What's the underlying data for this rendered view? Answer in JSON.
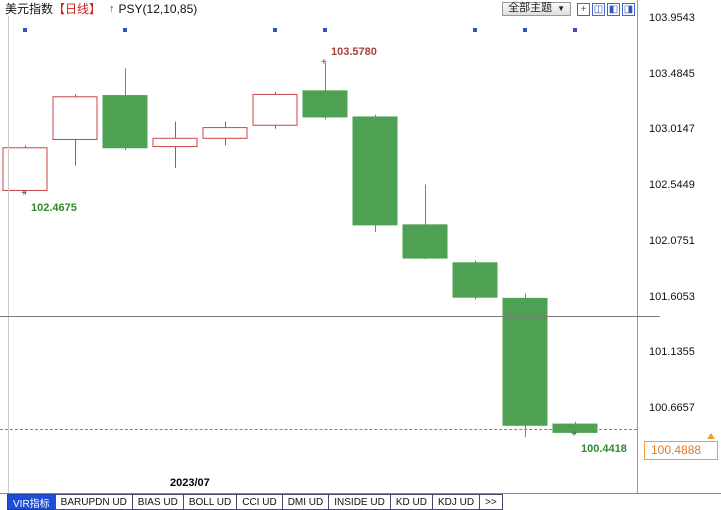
{
  "header": {
    "symbol": "美元指数",
    "period": "【日线】",
    "arrow_icon": "↑",
    "indicator": "PSY(12,10,85)",
    "theme_button_label": "全部主题",
    "theme_button_caret": "▼",
    "icons": [
      {
        "name": "add-panel-icon",
        "glyph": "+"
      },
      {
        "name": "layout-columns-icon",
        "glyph": "◫"
      },
      {
        "name": "layout-left-pane-icon",
        "glyph": "◧"
      },
      {
        "name": "layout-right-pane-icon",
        "glyph": "◨"
      }
    ]
  },
  "footer": {
    "date_label": "2023/07",
    "tabs": [
      {
        "id": "vir",
        "label": "VIR指标",
        "active": true
      },
      {
        "id": "barupdn",
        "label": "BARUPDN UD",
        "active": false
      },
      {
        "id": "bias",
        "label": "BIAS UD",
        "active": false
      },
      {
        "id": "boll",
        "label": "BOLL UD",
        "active": false
      },
      {
        "id": "cci",
        "label": "CCI UD",
        "active": false
      },
      {
        "id": "dmi",
        "label": "DMI UD",
        "active": false
      },
      {
        "id": "inside",
        "label": "INSIDE UD",
        "active": false
      },
      {
        "id": "kd",
        "label": "KD UD",
        "active": false
      },
      {
        "id": "kdj",
        "label": "KDJ UD",
        "active": false
      },
      {
        "id": "more",
        "label": ">>",
        "active": false
      }
    ]
  },
  "chart_data": {
    "type": "candlestick",
    "title": "美元指数 日线",
    "indicator": "PSY(12,10,85)",
    "y_ticks": [
      "103.9543",
      "103.4845",
      "103.0147",
      "102.5449",
      "102.0751",
      "101.6053",
      "101.1355",
      "100.6657"
    ],
    "ylim": [
      100.35,
      104.0
    ],
    "current_price": "100.4888",
    "reference_line": 101.44,
    "x_month_label": "2023/07",
    "candles": [
      {
        "o": 102.5,
        "h": 102.88,
        "l": 102.4675,
        "c": 102.86
      },
      {
        "o": 102.93,
        "h": 103.31,
        "l": 102.71,
        "c": 103.29
      },
      {
        "o": 103.3,
        "h": 103.53,
        "l": 102.84,
        "c": 102.86
      },
      {
        "o": 102.87,
        "h": 103.08,
        "l": 102.69,
        "c": 102.94
      },
      {
        "o": 102.94,
        "h": 103.08,
        "l": 102.88,
        "c": 103.03
      },
      {
        "o": 103.05,
        "h": 103.33,
        "l": 103.02,
        "c": 103.31
      },
      {
        "o": 103.34,
        "h": 103.578,
        "l": 103.1,
        "c": 103.12
      },
      {
        "o": 103.12,
        "h": 103.14,
        "l": 102.15,
        "c": 102.21
      },
      {
        "o": 102.21,
        "h": 102.55,
        "l": 101.92,
        "c": 101.93
      },
      {
        "o": 101.89,
        "h": 101.91,
        "l": 101.58,
        "c": 101.6
      },
      {
        "o": 101.59,
        "h": 101.63,
        "l": 100.42,
        "c": 100.52
      },
      {
        "o": 100.53,
        "h": 100.55,
        "l": 100.4418,
        "c": 100.46
      }
    ],
    "marker_candles": [
      0,
      2,
      5,
      6,
      9,
      10,
      11
    ],
    "annotations": [
      {
        "text": "103.5780",
        "candle": 6,
        "pos": "high",
        "color": "#a84040"
      },
      {
        "text": "102.4675",
        "candle": 0,
        "pos": "low",
        "color": "#2e8b2e"
      },
      {
        "text": "100.4418",
        "candle": 11,
        "pos": "low",
        "color": "#2e8b2e"
      }
    ],
    "colors": {
      "up": "#cc4444",
      "down": "#4ea052",
      "marker": "#3355bb",
      "dashed_line": "#2aa7a7",
      "current_price": "#e87722"
    }
  }
}
